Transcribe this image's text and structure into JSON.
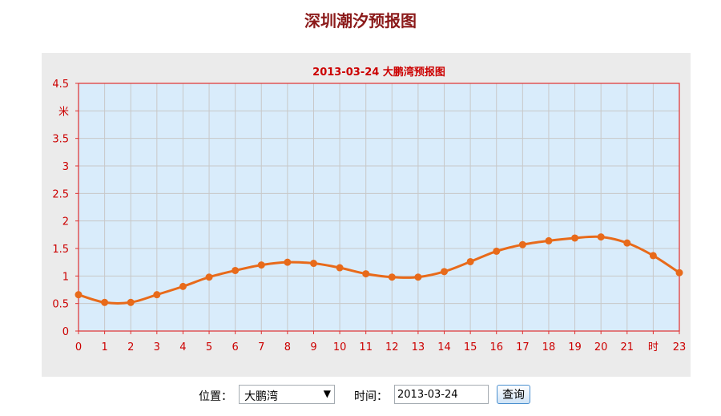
{
  "page": {
    "title": "深圳潮汐预报图"
  },
  "colors": {
    "plot_bg": "#d9ecfb",
    "frame": "#e03030",
    "grid": "#c8c8c8",
    "series": "#e86a1a",
    "text": "#cc0000"
  },
  "chart_data": {
    "type": "line",
    "title": "2013-03-24 大鹏湾预报图",
    "ylabel": "米",
    "xlabel": "时",
    "x": [
      0,
      1,
      2,
      3,
      4,
      5,
      6,
      7,
      8,
      9,
      10,
      11,
      12,
      13,
      14,
      15,
      16,
      17,
      18,
      19,
      20,
      21,
      22,
      23
    ],
    "x_tick_labels": [
      "0",
      "1",
      "2",
      "3",
      "4",
      "5",
      "6",
      "7",
      "8",
      "9",
      "10",
      "11",
      "12",
      "13",
      "14",
      "15",
      "16",
      "17",
      "18",
      "19",
      "20",
      "21",
      "时",
      "23"
    ],
    "y_ticks": [
      "0",
      "0.5",
      "1",
      "1.5",
      "2",
      "2.5",
      "3",
      "3.5",
      "米",
      "4.5"
    ],
    "ylim": [
      0,
      4.5
    ],
    "xlim": [
      0,
      23
    ],
    "grid": true,
    "series": [
      {
        "values": [
          0.66,
          0.52,
          0.52,
          0.66,
          0.81,
          0.98,
          1.1,
          1.2,
          1.25,
          1.23,
          1.15,
          1.04,
          0.98,
          0.98,
          1.08,
          1.26,
          1.45,
          1.57,
          1.64,
          1.69,
          1.71,
          1.6,
          1.37,
          1.06
        ]
      }
    ]
  },
  "controls": {
    "location_label": "位置：",
    "location_value": "大鹏湾",
    "time_label": "时间：",
    "date_value": "2013-03-24",
    "query_button": "查询"
  }
}
